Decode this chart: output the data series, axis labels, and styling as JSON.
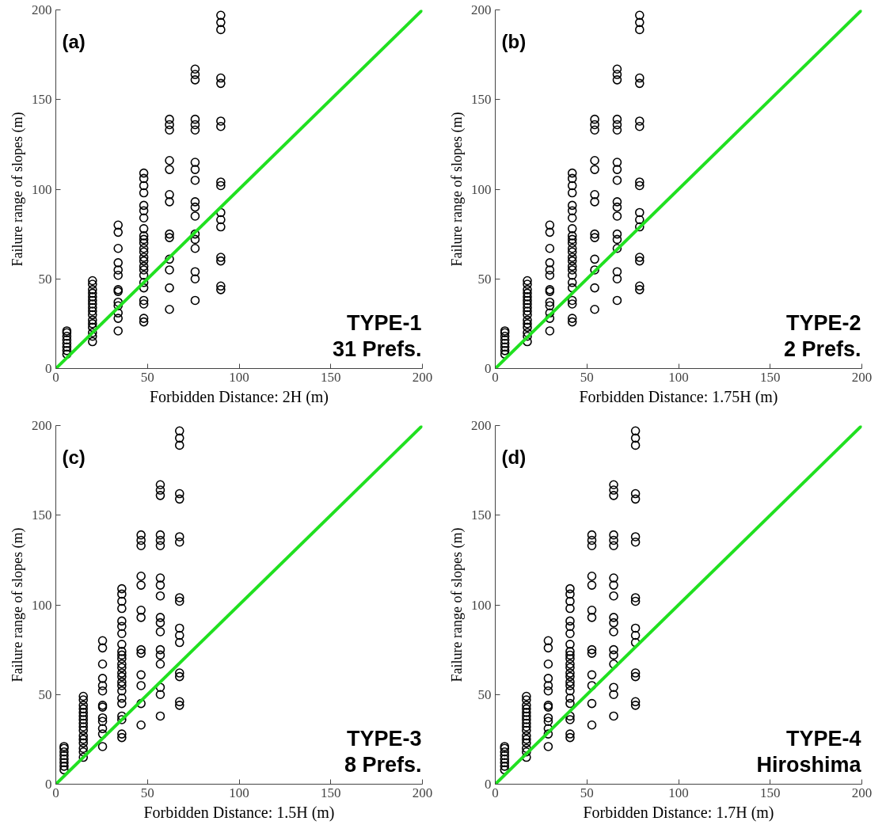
{
  "chart_data": [
    {
      "type": "scatter",
      "xlabel": "Forbidden Distance: 2H (m)",
      "ylabel": "Failure range of slopes (m)",
      "xlim": [
        0,
        200
      ],
      "ylim": [
        0,
        200
      ],
      "xticks": [
        0,
        50,
        100,
        150,
        200
      ],
      "yticks": [
        0,
        50,
        100,
        150,
        200
      ],
      "marker": "circle",
      "grid": false,
      "annotations": [
        "(a)",
        "TYPE-1\n31 Prefs."
      ],
      "series": [
        {
          "color": "#000000",
          "x": [
            6,
            6,
            6,
            6,
            6,
            6,
            6,
            6,
            20,
            20,
            20,
            20,
            20,
            20,
            20,
            20,
            20,
            20,
            20,
            20,
            20,
            20,
            20,
            20,
            34,
            34,
            34,
            34,
            34,
            34,
            34,
            34,
            34,
            34,
            34,
            34,
            34,
            48,
            48,
            48,
            48,
            48,
            48,
            48,
            48,
            48,
            48,
            48,
            48,
            48,
            48,
            48,
            48,
            48,
            48,
            48,
            48,
            48,
            48,
            48,
            48,
            62,
            62,
            62,
            62,
            62,
            62,
            62,
            62,
            62,
            62,
            62,
            62,
            62,
            76,
            76,
            76,
            76,
            76,
            76,
            76,
            76,
            76,
            76,
            76,
            76,
            76,
            76,
            76,
            76,
            76,
            76,
            90,
            90,
            90,
            90,
            90,
            90,
            90,
            90,
            90,
            90,
            90,
            90,
            90,
            90,
            90,
            90
          ],
          "values": [
            8,
            10,
            12,
            14,
            16,
            18,
            20,
            21,
            15,
            18,
            20,
            23,
            25,
            27,
            30,
            32,
            34,
            36,
            38,
            40,
            42,
            44,
            47,
            49,
            21,
            28,
            31,
            35,
            37,
            43,
            44,
            52,
            55,
            59,
            67,
            76,
            80,
            26,
            28,
            36,
            38,
            45,
            48,
            52,
            55,
            57,
            60,
            62,
            65,
            67,
            70,
            72,
            74,
            78,
            84,
            88,
            91,
            98,
            102,
            106,
            109,
            33,
            45,
            55,
            61,
            73,
            75,
            93,
            97,
            111,
            116,
            133,
            136,
            139,
            38,
            50,
            54,
            67,
            72,
            75,
            85,
            90,
            93,
            105,
            111,
            115,
            133,
            136,
            139,
            161,
            164,
            167,
            44,
            46,
            60,
            62,
            79,
            83,
            87,
            102,
            104,
            135,
            138,
            159,
            162,
            189,
            193,
            197
          ]
        },
        {
          "type": "line",
          "marker": "none",
          "color": "#20e020",
          "x": [
            0,
            200
          ],
          "values": [
            0,
            200
          ]
        }
      ]
    },
    {
      "type": "scatter",
      "xlabel": "Forbidden Distance: 1.75H (m)",
      "ylabel": "Failure range of slopes (m)",
      "xlim": [
        0,
        200
      ],
      "ylim": [
        0,
        200
      ],
      "xticks": [
        0,
        50,
        100,
        150,
        200
      ],
      "yticks": [
        0,
        50,
        100,
        150,
        200
      ],
      "marker": "circle",
      "grid": false,
      "annotations": [
        "(b)",
        "TYPE-2\n2 Prefs."
      ],
      "series": [
        {
          "color": "#000000",
          "x": [
            5.25,
            5.25,
            5.25,
            5.25,
            5.25,
            5.25,
            5.25,
            5.25,
            17.5,
            17.5,
            17.5,
            17.5,
            17.5,
            17.5,
            17.5,
            17.5,
            17.5,
            17.5,
            17.5,
            17.5,
            17.5,
            17.5,
            17.5,
            17.5,
            29.75,
            29.75,
            29.75,
            29.75,
            29.75,
            29.75,
            29.75,
            29.75,
            29.75,
            29.75,
            29.75,
            29.75,
            29.75,
            42,
            42,
            42,
            42,
            42,
            42,
            42,
            42,
            42,
            42,
            42,
            42,
            42,
            42,
            42,
            42,
            42,
            42,
            42,
            42,
            42,
            42,
            42,
            42,
            54.25,
            54.25,
            54.25,
            54.25,
            54.25,
            54.25,
            54.25,
            54.25,
            54.25,
            54.25,
            54.25,
            54.25,
            54.25,
            66.5,
            66.5,
            66.5,
            66.5,
            66.5,
            66.5,
            66.5,
            66.5,
            66.5,
            66.5,
            66.5,
            66.5,
            66.5,
            66.5,
            66.5,
            66.5,
            66.5,
            66.5,
            78.75,
            78.75,
            78.75,
            78.75,
            78.75,
            78.75,
            78.75,
            78.75,
            78.75,
            78.75,
            78.75,
            78.75,
            78.75,
            78.75,
            78.75,
            78.75
          ],
          "values": [
            8,
            10,
            12,
            14,
            16,
            18,
            20,
            21,
            15,
            18,
            20,
            23,
            25,
            27,
            30,
            32,
            34,
            36,
            38,
            40,
            42,
            44,
            47,
            49,
            21,
            28,
            31,
            35,
            37,
            43,
            44,
            52,
            55,
            59,
            67,
            76,
            80,
            26,
            28,
            36,
            38,
            45,
            48,
            52,
            55,
            57,
            60,
            62,
            65,
            67,
            70,
            72,
            74,
            78,
            84,
            88,
            91,
            98,
            102,
            106,
            109,
            33,
            45,
            55,
            61,
            73,
            75,
            93,
            97,
            111,
            116,
            133,
            136,
            139,
            38,
            50,
            54,
            67,
            72,
            75,
            85,
            90,
            93,
            105,
            111,
            115,
            133,
            136,
            139,
            161,
            164,
            167,
            44,
            46,
            60,
            62,
            79,
            83,
            87,
            102,
            104,
            135,
            138,
            159,
            162,
            189,
            193,
            197
          ]
        },
        {
          "type": "line",
          "marker": "none",
          "color": "#20e020",
          "x": [
            0,
            200
          ],
          "values": [
            0,
            200
          ]
        }
      ]
    },
    {
      "type": "scatter",
      "xlabel": "Forbidden Distance: 1.5H (m)",
      "ylabel": "Failure range of slopes (m)",
      "xlim": [
        0,
        200
      ],
      "ylim": [
        0,
        200
      ],
      "xticks": [
        0,
        50,
        100,
        150,
        200
      ],
      "yticks": [
        0,
        50,
        100,
        150,
        200
      ],
      "marker": "circle",
      "grid": false,
      "annotations": [
        "(c)",
        "TYPE-3\n8 Prefs."
      ],
      "series": [
        {
          "color": "#000000",
          "x": [
            4.5,
            4.5,
            4.5,
            4.5,
            4.5,
            4.5,
            4.5,
            4.5,
            15,
            15,
            15,
            15,
            15,
            15,
            15,
            15,
            15,
            15,
            15,
            15,
            15,
            15,
            15,
            15,
            25.5,
            25.5,
            25.5,
            25.5,
            25.5,
            25.5,
            25.5,
            25.5,
            25.5,
            25.5,
            25.5,
            25.5,
            25.5,
            36,
            36,
            36,
            36,
            36,
            36,
            36,
            36,
            36,
            36,
            36,
            36,
            36,
            36,
            36,
            36,
            36,
            36,
            36,
            36,
            36,
            36,
            36,
            36,
            46.5,
            46.5,
            46.5,
            46.5,
            46.5,
            46.5,
            46.5,
            46.5,
            46.5,
            46.5,
            46.5,
            46.5,
            46.5,
            57,
            57,
            57,
            57,
            57,
            57,
            57,
            57,
            57,
            57,
            57,
            57,
            57,
            57,
            57,
            57,
            57,
            57,
            67.5,
            67.5,
            67.5,
            67.5,
            67.5,
            67.5,
            67.5,
            67.5,
            67.5,
            67.5,
            67.5,
            67.5,
            67.5,
            67.5,
            67.5,
            67.5
          ],
          "values": [
            8,
            10,
            12,
            14,
            16,
            18,
            20,
            21,
            15,
            18,
            20,
            23,
            25,
            27,
            30,
            32,
            34,
            36,
            38,
            40,
            42,
            44,
            47,
            49,
            21,
            28,
            31,
            35,
            37,
            43,
            44,
            52,
            55,
            59,
            67,
            76,
            80,
            26,
            28,
            36,
            38,
            45,
            48,
            52,
            55,
            57,
            60,
            62,
            65,
            67,
            70,
            72,
            74,
            78,
            84,
            88,
            91,
            98,
            102,
            106,
            109,
            33,
            45,
            55,
            61,
            73,
            75,
            93,
            97,
            111,
            116,
            133,
            136,
            139,
            38,
            50,
            54,
            67,
            72,
            75,
            85,
            90,
            93,
            105,
            111,
            115,
            133,
            136,
            139,
            161,
            164,
            167,
            44,
            46,
            60,
            62,
            79,
            83,
            87,
            102,
            104,
            135,
            138,
            159,
            162,
            189,
            193,
            197
          ]
        },
        {
          "type": "line",
          "marker": "none",
          "color": "#20e020",
          "x": [
            0,
            200
          ],
          "values": [
            0,
            200
          ]
        }
      ]
    },
    {
      "type": "scatter",
      "xlabel": "Forbidden Distance: 1.7H (m)",
      "ylabel": "Failure range of slopes (m)",
      "xlim": [
        0,
        200
      ],
      "ylim": [
        0,
        200
      ],
      "xticks": [
        0,
        50,
        100,
        150,
        200
      ],
      "yticks": [
        0,
        50,
        100,
        150,
        200
      ],
      "marker": "circle",
      "grid": false,
      "annotations": [
        "(d)",
        "TYPE-4\nHiroshima"
      ],
      "series": [
        {
          "color": "#000000",
          "x": [
            5.1,
            5.1,
            5.1,
            5.1,
            5.1,
            5.1,
            5.1,
            5.1,
            17,
            17,
            17,
            17,
            17,
            17,
            17,
            17,
            17,
            17,
            17,
            17,
            17,
            17,
            17,
            17,
            28.9,
            28.9,
            28.9,
            28.9,
            28.9,
            28.9,
            28.9,
            28.9,
            28.9,
            28.9,
            28.9,
            28.9,
            28.9,
            40.8,
            40.8,
            40.8,
            40.8,
            40.8,
            40.8,
            40.8,
            40.8,
            40.8,
            40.8,
            40.8,
            40.8,
            40.8,
            40.8,
            40.8,
            40.8,
            40.8,
            40.8,
            40.8,
            40.8,
            40.8,
            40.8,
            40.8,
            40.8,
            52.7,
            52.7,
            52.7,
            52.7,
            52.7,
            52.7,
            52.7,
            52.7,
            52.7,
            52.7,
            52.7,
            52.7,
            52.7,
            64.6,
            64.6,
            64.6,
            64.6,
            64.6,
            64.6,
            64.6,
            64.6,
            64.6,
            64.6,
            64.6,
            64.6,
            64.6,
            64.6,
            64.6,
            64.6,
            64.6,
            64.6,
            76.5,
            76.5,
            76.5,
            76.5,
            76.5,
            76.5,
            76.5,
            76.5,
            76.5,
            76.5,
            76.5,
            76.5,
            76.5,
            76.5,
            76.5,
            76.5
          ],
          "values": [
            8,
            10,
            12,
            14,
            16,
            18,
            20,
            21,
            15,
            18,
            20,
            23,
            25,
            27,
            30,
            32,
            34,
            36,
            38,
            40,
            42,
            44,
            47,
            49,
            21,
            28,
            31,
            35,
            37,
            43,
            44,
            52,
            55,
            59,
            67,
            76,
            80,
            26,
            28,
            36,
            38,
            45,
            48,
            52,
            55,
            57,
            60,
            62,
            65,
            67,
            70,
            72,
            74,
            78,
            84,
            88,
            91,
            98,
            102,
            106,
            109,
            33,
            45,
            55,
            61,
            73,
            75,
            93,
            97,
            111,
            116,
            133,
            136,
            139,
            38,
            50,
            54,
            67,
            72,
            75,
            85,
            90,
            93,
            105,
            111,
            115,
            133,
            136,
            139,
            161,
            164,
            167,
            44,
            46,
            60,
            62,
            79,
            83,
            87,
            102,
            104,
            135,
            138,
            159,
            162,
            189,
            193,
            197
          ]
        },
        {
          "type": "line",
          "marker": "none",
          "color": "#20e020",
          "x": [
            0,
            200
          ],
          "values": [
            0,
            200
          ]
        }
      ]
    }
  ]
}
